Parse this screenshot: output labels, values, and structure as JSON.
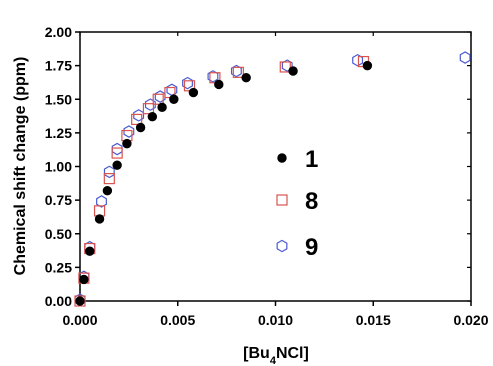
{
  "chart_data": {
    "type": "scatter",
    "ylabel": "Chemical shift change (ppm)",
    "xlabel_parts": {
      "prefix": "[Bu",
      "subscript": "4",
      "suffix": "NCl]"
    },
    "xlim": [
      0.0,
      0.02
    ],
    "ylim": [
      0.0,
      2.0
    ],
    "x_ticks": [
      0.0,
      0.005,
      0.01,
      0.015,
      0.02
    ],
    "x_tick_labels": [
      "0.000",
      "0.005",
      "0.010",
      "0.015",
      "0.020"
    ],
    "y_ticks": [
      0.0,
      0.25,
      0.5,
      0.75,
      1.0,
      1.25,
      1.5,
      1.75,
      2.0
    ],
    "y_tick_labels": [
      "0.00",
      "0.25",
      "0.50",
      "0.75",
      "1.00",
      "1.25",
      "1.50",
      "1.75",
      "2.00"
    ],
    "grid": false,
    "legend_placement": "center-right",
    "series": [
      {
        "name": "1",
        "marker": "filled-circle",
        "color": "#000000",
        "x": [
          0.0,
          0.0002,
          0.0005,
          0.001,
          0.0014,
          0.0019,
          0.0024,
          0.0031,
          0.0037,
          0.0042,
          0.0048,
          0.0058,
          0.0071,
          0.0085,
          0.0109,
          0.0147
        ],
        "y": [
          0.0,
          0.16,
          0.37,
          0.61,
          0.82,
          1.01,
          1.17,
          1.29,
          1.37,
          1.44,
          1.5,
          1.55,
          1.61,
          1.66,
          1.71,
          1.75
        ]
      },
      {
        "name": "8",
        "marker": "open-square",
        "color": "#d9534f",
        "x": [
          0.0,
          0.0002,
          0.0005,
          0.001,
          0.0015,
          0.0019,
          0.0024,
          0.0029,
          0.0035,
          0.004,
          0.0046,
          0.0056,
          0.0069,
          0.0081,
          0.0105,
          0.0145
        ],
        "y": [
          0.0,
          0.17,
          0.39,
          0.67,
          0.91,
          1.1,
          1.23,
          1.35,
          1.43,
          1.5,
          1.55,
          1.6,
          1.66,
          1.7,
          1.74,
          1.78
        ]
      },
      {
        "name": "9",
        "marker": "open-hexagon",
        "color": "#4a5bd0",
        "x": [
          0.0,
          0.0002,
          0.0005,
          0.0011,
          0.0015,
          0.0019,
          0.0025,
          0.003,
          0.0036,
          0.0041,
          0.0047,
          0.0055,
          0.0068,
          0.008,
          0.0106,
          0.0142,
          0.0197
        ],
        "y": [
          0.01,
          0.18,
          0.4,
          0.74,
          0.96,
          1.13,
          1.26,
          1.38,
          1.46,
          1.52,
          1.57,
          1.62,
          1.67,
          1.71,
          1.75,
          1.79,
          1.81
        ]
      }
    ]
  }
}
